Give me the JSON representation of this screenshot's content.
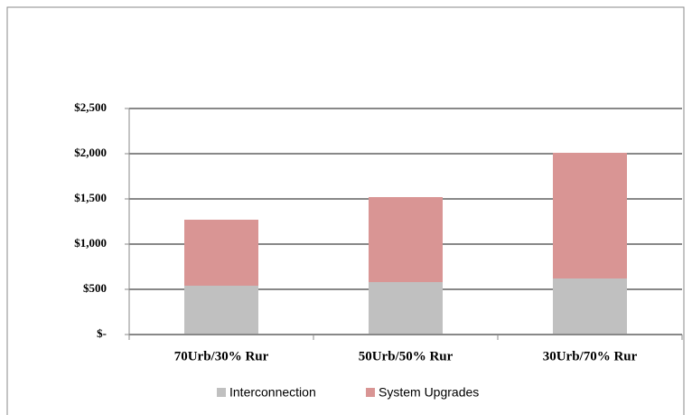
{
  "chart_data": {
    "type": "bar",
    "stacked": true,
    "categories": [
      "70Urb/30% Rur",
      "50Urb/50% Rur",
      "30Urb/70% Rur"
    ],
    "series": [
      {
        "name": "Interconnection",
        "color": "#c0c0c0",
        "values": [
          540,
          580,
          620
        ]
      },
      {
        "name": "System Upgrades",
        "color": "#d99594",
        "values": [
          730,
          940,
          1390
        ]
      }
    ],
    "ylim": [
      0,
      2500
    ],
    "yticks": [
      {
        "value": 0,
        "label": "$-"
      },
      {
        "value": 500,
        "label": "$500"
      },
      {
        "value": 1000,
        "label": "$1,000"
      },
      {
        "value": 1500,
        "label": "$1,500"
      },
      {
        "value": 2000,
        "label": "$2,000"
      },
      {
        "value": 2500,
        "label": "$2,500"
      }
    ],
    "grid": true,
    "legend": "bottom"
  }
}
